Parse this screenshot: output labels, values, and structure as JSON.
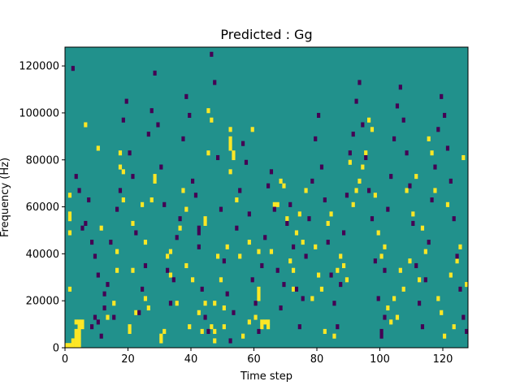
{
  "chart_data": {
    "type": "heatmap",
    "title": "Predicted : Gg",
    "xlabel": "Time step",
    "ylabel": "Frequency (Hz)",
    "xlim": [
      0,
      128
    ],
    "ylim": [
      0,
      128000
    ],
    "n_time_steps": 128,
    "n_freq_bins": 64,
    "x_ticks": [
      0,
      20,
      40,
      60,
      80,
      100,
      120
    ],
    "y_ticks": [
      0,
      20000,
      40000,
      60000,
      80000,
      100000,
      120000
    ],
    "x_tick_labels": [
      "0",
      "20",
      "40",
      "60",
      "80",
      "100",
      "120"
    ],
    "y_tick_labels": [
      "0",
      "20000",
      "40000",
      "60000",
      "80000",
      "100000",
      "120000"
    ],
    "colormap": "viridis",
    "colors": {
      "background": "#21918c",
      "high": "#fde725",
      "low": "#440154"
    },
    "grid": false,
    "cells_high": [
      [
        0,
        0
      ],
      [
        1,
        0
      ],
      [
        2,
        0
      ],
      [
        3,
        0
      ],
      [
        4,
        0
      ],
      [
        2,
        1
      ],
      [
        3,
        1
      ],
      [
        4,
        1
      ],
      [
        3,
        2
      ],
      [
        4,
        2
      ],
      [
        3,
        3
      ],
      [
        4,
        3
      ],
      [
        4,
        4
      ],
      [
        5,
        4
      ],
      [
        3,
        5
      ],
      [
        4,
        5
      ],
      [
        5,
        5
      ],
      [
        1,
        12
      ],
      [
        1,
        24
      ],
      [
        1,
        27
      ],
      [
        1,
        28
      ],
      [
        1,
        32
      ],
      [
        6,
        47
      ],
      [
        10,
        42
      ],
      [
        11,
        25
      ],
      [
        13,
        6
      ],
      [
        15,
        9
      ],
      [
        16,
        16
      ],
      [
        16,
        20
      ],
      [
        17,
        38
      ],
      [
        17,
        41
      ],
      [
        18,
        37
      ],
      [
        18,
        31
      ],
      [
        20,
        3
      ],
      [
        20,
        4
      ],
      [
        21,
        16
      ],
      [
        21,
        26
      ],
      [
        22,
        7
      ],
      [
        24,
        30
      ],
      [
        25,
        10
      ],
      [
        25,
        22
      ],
      [
        26,
        8
      ],
      [
        27,
        31
      ],
      [
        28,
        36
      ],
      [
        28,
        35
      ],
      [
        30,
        1
      ],
      [
        30,
        2
      ],
      [
        31,
        3
      ],
      [
        32,
        19
      ],
      [
        33,
        15
      ],
      [
        33,
        20
      ],
      [
        35,
        9
      ],
      [
        36,
        25
      ],
      [
        37,
        33
      ],
      [
        38,
        29
      ],
      [
        38,
        17
      ],
      [
        39,
        4
      ],
      [
        40,
        14
      ],
      [
        42,
        7
      ],
      [
        43,
        3
      ],
      [
        44,
        9
      ],
      [
        44,
        27
      ],
      [
        44,
        26
      ],
      [
        45,
        41
      ],
      [
        45,
        50
      ],
      [
        46,
        48
      ],
      [
        46,
        4
      ],
      [
        47,
        1
      ],
      [
        47,
        3
      ],
      [
        47,
        9
      ],
      [
        48,
        19
      ],
      [
        49,
        14
      ],
      [
        50,
        8
      ],
      [
        50,
        4
      ],
      [
        51,
        21
      ],
      [
        52,
        37
      ],
      [
        52,
        46
      ],
      [
        52,
        44
      ],
      [
        52,
        43
      ],
      [
        52,
        42
      ],
      [
        53,
        40
      ],
      [
        53,
        41
      ],
      [
        54,
        31
      ],
      [
        55,
        19
      ],
      [
        56,
        2
      ],
      [
        58,
        5
      ],
      [
        58,
        22
      ],
      [
        59,
        46
      ],
      [
        60,
        6
      ],
      [
        61,
        12
      ],
      [
        61,
        10
      ],
      [
        61,
        11
      ],
      [
        61,
        20
      ],
      [
        62,
        5
      ],
      [
        62,
        4
      ],
      [
        63,
        5
      ],
      [
        64,
        4
      ],
      [
        64,
        5
      ],
      [
        65,
        20
      ],
      [
        66,
        30
      ],
      [
        67,
        30
      ],
      [
        68,
        35
      ],
      [
        69,
        34
      ],
      [
        70,
        27
      ],
      [
        71,
        18
      ],
      [
        72,
        12
      ],
      [
        72,
        16
      ],
      [
        73,
        24
      ],
      [
        74,
        28
      ],
      [
        75,
        22
      ],
      [
        76,
        33
      ],
      [
        78,
        10
      ],
      [
        79,
        21
      ],
      [
        80,
        15
      ],
      [
        81,
        12
      ],
      [
        82,
        3
      ],
      [
        83,
        26
      ],
      [
        84,
        28
      ],
      [
        85,
        2
      ],
      [
        86,
        16
      ],
      [
        87,
        19
      ],
      [
        88,
        17
      ],
      [
        89,
        14
      ],
      [
        90,
        39
      ],
      [
        91,
        30
      ],
      [
        92,
        33
      ],
      [
        93,
        35
      ],
      [
        94,
        38
      ],
      [
        95,
        41
      ],
      [
        96,
        48
      ],
      [
        97,
        46
      ],
      [
        98,
        32
      ],
      [
        99,
        24
      ],
      [
        100,
        19
      ],
      [
        101,
        21
      ],
      [
        102,
        8
      ],
      [
        103,
        5
      ],
      [
        104,
        10
      ],
      [
        105,
        6
      ],
      [
        106,
        16
      ],
      [
        107,
        12
      ],
      [
        108,
        33
      ],
      [
        109,
        18
      ],
      [
        110,
        28
      ],
      [
        111,
        36
      ],
      [
        112,
        14
      ],
      [
        113,
        25
      ],
      [
        114,
        20
      ],
      [
        115,
        44
      ],
      [
        116,
        41
      ],
      [
        117,
        33
      ],
      [
        118,
        10
      ],
      [
        119,
        7
      ],
      [
        120,
        2
      ],
      [
        121,
        30
      ],
      [
        122,
        15
      ],
      [
        123,
        4
      ],
      [
        124,
        18
      ],
      [
        125,
        21
      ],
      [
        126,
        40
      ],
      [
        127,
        13
      ]
    ],
    "cells_low": [
      [
        2,
        59
      ],
      [
        3,
        36
      ],
      [
        4,
        33
      ],
      [
        5,
        25
      ],
      [
        6,
        26
      ],
      [
        7,
        31
      ],
      [
        8,
        22
      ],
      [
        9,
        19
      ],
      [
        10,
        15
      ],
      [
        11,
        2
      ],
      [
        12,
        8
      ],
      [
        13,
        13
      ],
      [
        14,
        22
      ],
      [
        15,
        6
      ],
      [
        16,
        29
      ],
      [
        17,
        33
      ],
      [
        18,
        48
      ],
      [
        19,
        52
      ],
      [
        20,
        41
      ],
      [
        21,
        36
      ],
      [
        22,
        24
      ],
      [
        23,
        7
      ],
      [
        24,
        12
      ],
      [
        25,
        17
      ],
      [
        26,
        45
      ],
      [
        27,
        50
      ],
      [
        28,
        58
      ],
      [
        29,
        47
      ],
      [
        30,
        38
      ],
      [
        31,
        30
      ],
      [
        32,
        16
      ],
      [
        33,
        9
      ],
      [
        34,
        14
      ],
      [
        35,
        23
      ],
      [
        36,
        27
      ],
      [
        37,
        44
      ],
      [
        38,
        53
      ],
      [
        39,
        49
      ],
      [
        40,
        35
      ],
      [
        41,
        32
      ],
      [
        42,
        21
      ],
      [
        43,
        12
      ],
      [
        44,
        6
      ],
      [
        45,
        3
      ],
      [
        46,
        62
      ],
      [
        47,
        56
      ],
      [
        48,
        40
      ],
      [
        49,
        29
      ],
      [
        50,
        18
      ],
      [
        51,
        11
      ],
      [
        52,
        1
      ],
      [
        53,
        7
      ],
      [
        54,
        25
      ],
      [
        55,
        33
      ],
      [
        56,
        43
      ],
      [
        57,
        39
      ],
      [
        58,
        28
      ],
      [
        59,
        14
      ],
      [
        60,
        9
      ],
      [
        61,
        3
      ],
      [
        62,
        17
      ],
      [
        63,
        23
      ],
      [
        64,
        34
      ],
      [
        65,
        37
      ],
      [
        66,
        29
      ],
      [
        67,
        16
      ],
      [
        68,
        8
      ],
      [
        69,
        13
      ],
      [
        70,
        26
      ],
      [
        71,
        30
      ],
      [
        72,
        21
      ],
      [
        73,
        12
      ],
      [
        74,
        4
      ],
      [
        75,
        10
      ],
      [
        76,
        19
      ],
      [
        77,
        27
      ],
      [
        78,
        35
      ],
      [
        79,
        44
      ],
      [
        80,
        49
      ],
      [
        81,
        38
      ],
      [
        82,
        31
      ],
      [
        83,
        22
      ],
      [
        84,
        15
      ],
      [
        85,
        9
      ],
      [
        86,
        4
      ],
      [
        87,
        13
      ],
      [
        88,
        24
      ],
      [
        89,
        32
      ],
      [
        90,
        41
      ],
      [
        91,
        45
      ],
      [
        92,
        52
      ],
      [
        93,
        56
      ],
      [
        94,
        47
      ],
      [
        95,
        40
      ],
      [
        96,
        33
      ],
      [
        97,
        27
      ],
      [
        98,
        18
      ],
      [
        99,
        10
      ],
      [
        100,
        3
      ],
      [
        101,
        16
      ],
      [
        102,
        29
      ],
      [
        103,
        36
      ],
      [
        104,
        44
      ],
      [
        105,
        51
      ],
      [
        106,
        55
      ],
      [
        107,
        48
      ],
      [
        108,
        41
      ],
      [
        109,
        34
      ],
      [
        110,
        26
      ],
      [
        111,
        17
      ],
      [
        112,
        9
      ],
      [
        113,
        4
      ],
      [
        114,
        14
      ],
      [
        115,
        22
      ],
      [
        116,
        31
      ],
      [
        117,
        38
      ],
      [
        118,
        46
      ],
      [
        119,
        53
      ],
      [
        120,
        49
      ],
      [
        121,
        42
      ],
      [
        122,
        35
      ],
      [
        123,
        27
      ],
      [
        124,
        19
      ],
      [
        125,
        12
      ],
      [
        126,
        6
      ],
      [
        127,
        3
      ],
      [
        8,
        4
      ],
      [
        9,
        6
      ],
      [
        10,
        5
      ],
      [
        12,
        11
      ],
      [
        100,
        2
      ],
      [
        101,
        6
      ],
      [
        42,
        24
      ],
      [
        42,
        25
      ]
    ]
  }
}
